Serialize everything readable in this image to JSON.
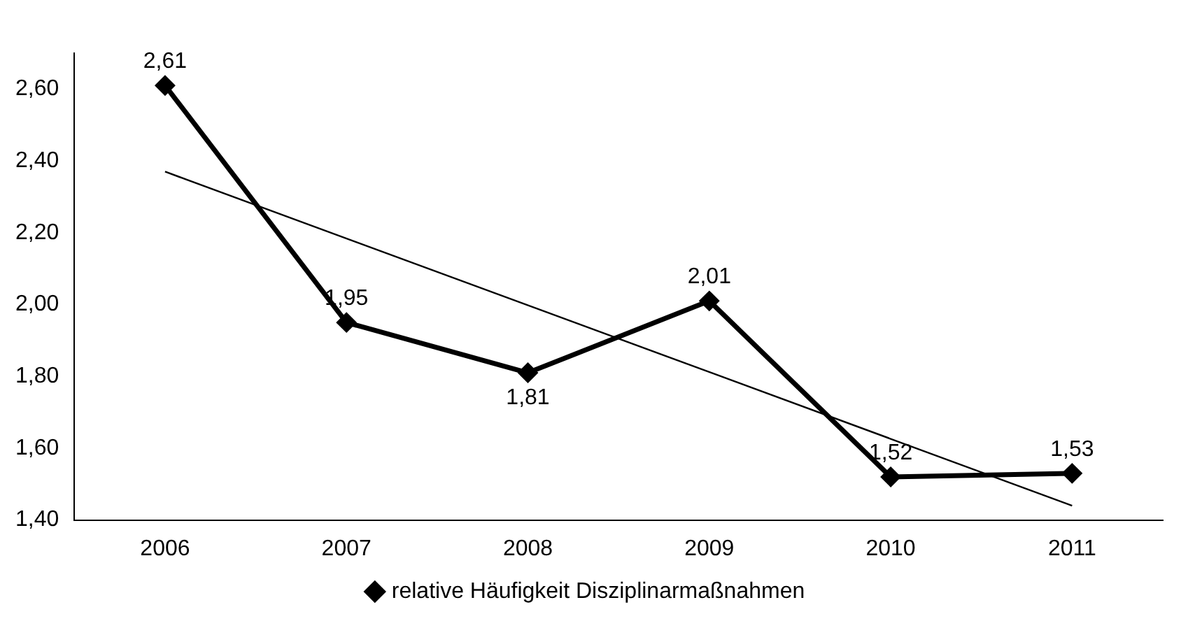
{
  "chart_data": {
    "type": "line",
    "categories": [
      "2006",
      "2007",
      "2008",
      "2009",
      "2010",
      "2011"
    ],
    "series": [
      {
        "name": "relative Häufigkeit Disziplinarmaßnahmen",
        "color": "#000000",
        "values": [
          2.61,
          1.95,
          1.81,
          2.01,
          1.52,
          1.53
        ],
        "value_labels": [
          "2,61",
          "1,95",
          "1,81",
          "2,01",
          "1,52",
          "1,53"
        ],
        "marker": "diamond",
        "line_style": "solid"
      },
      {
        "type": "line",
        "color": "#000000",
        "values": [
          2.37,
          null,
          null,
          null,
          null,
          1.44
        ],
        "marker": "none",
        "line_style": "solid"
      }
    ],
    "ylim": [
      1.4,
      2.7
    ],
    "yticks": [
      {
        "value": 1.4,
        "label": "1,40"
      },
      {
        "value": 1.6,
        "label": "1,60"
      },
      {
        "value": 1.8,
        "label": "1,80"
      },
      {
        "value": 2.0,
        "label": "2,00"
      },
      {
        "value": 2.2,
        "label": "2,20"
      },
      {
        "value": 2.4,
        "label": "2,40"
      },
      {
        "value": 2.6,
        "label": "2,60"
      }
    ],
    "grid": false,
    "legend": "bottom"
  }
}
